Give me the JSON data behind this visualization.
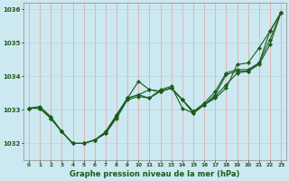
{
  "title": "Graphe pression niveau de la mer (hPa)",
  "background_color": "#cce8f0",
  "grid_color_v": "#e8a0a0",
  "grid_color_h": "#b8d8e0",
  "line_color": "#1a5c1a",
  "marker_color": "#1a5c1a",
  "ylim": [
    1031.5,
    1036.2
  ],
  "xlim": [
    -0.5,
    23.5
  ],
  "yticks": [
    1032,
    1033,
    1034,
    1035,
    1036
  ],
  "xticks": [
    0,
    1,
    2,
    3,
    4,
    5,
    6,
    7,
    8,
    9,
    10,
    11,
    12,
    13,
    14,
    15,
    16,
    17,
    18,
    19,
    20,
    21,
    22,
    23
  ],
  "series": [
    [
      1033.0,
      1033.05,
      1032.75,
      1032.35,
      1032.0,
      1032.0,
      1032.05,
      1032.15,
      1032.7,
      1032.85,
      1033.35,
      1033.35,
      1033.55,
      1033.6,
      1033.3,
      1032.95,
      1033.1,
      1033.3,
      1033.6,
      1034.05,
      1034.15,
      1034.2,
      1034.85,
      1035.85
    ],
    [
      1033.0,
      1033.05,
      1032.75,
      1032.35,
      1032.0,
      1032.0,
      1032.05,
      1032.2,
      1032.7,
      1033.3,
      1033.45,
      1033.35,
      1033.6,
      1033.65,
      1033.3,
      1032.95,
      1033.1,
      1033.35,
      1033.75,
      1034.2,
      1034.15,
      1034.35,
      1034.95,
      1035.85
    ],
    [
      1033.0,
      1033.05,
      1032.75,
      1032.35,
      1032.0,
      1032.0,
      1032.1,
      1032.3,
      1032.85,
      1033.35,
      1033.4,
      1033.6,
      1033.55,
      1033.65,
      1033.3,
      1032.95,
      1033.1,
      1033.4,
      1034.0,
      1034.2,
      1034.15,
      1034.4,
      1035.3,
      1035.85
    ],
    [
      1033.05,
      1033.05,
      1032.75,
      1032.35,
      1032.0,
      1032.0,
      1032.1,
      1032.3,
      1032.85,
      1033.35,
      1033.85,
      1033.6,
      1033.55,
      1033.65,
      1033.3,
      1032.95,
      1033.15,
      1033.5,
      1034.1,
      1034.2,
      1034.15,
      1034.4,
      1035.35,
      1035.85
    ]
  ],
  "series_diverge": [
    [
      1033.0,
      1033.1,
      1032.8,
      1032.35,
      1032.0,
      1032.0,
      1032.1,
      1032.3,
      1032.75,
      1033.3,
      1033.4,
      1033.35,
      1033.6,
      1033.7,
      1033.05,
      1032.9,
      1033.15,
      1033.35,
      1033.65,
      1034.35,
      1034.4,
      1034.85,
      1035.35,
      1035.9
    ],
    [
      1033.05,
      1033.05,
      1032.75,
      1032.35,
      1032.0,
      1032.0,
      1032.1,
      1032.3,
      1032.8,
      1033.35,
      1033.4,
      1033.35,
      1033.55,
      1033.65,
      1033.3,
      1032.9,
      1033.15,
      1033.35,
      1033.7,
      1034.1,
      1034.15,
      1034.4,
      1035.35,
      1035.9
    ]
  ]
}
